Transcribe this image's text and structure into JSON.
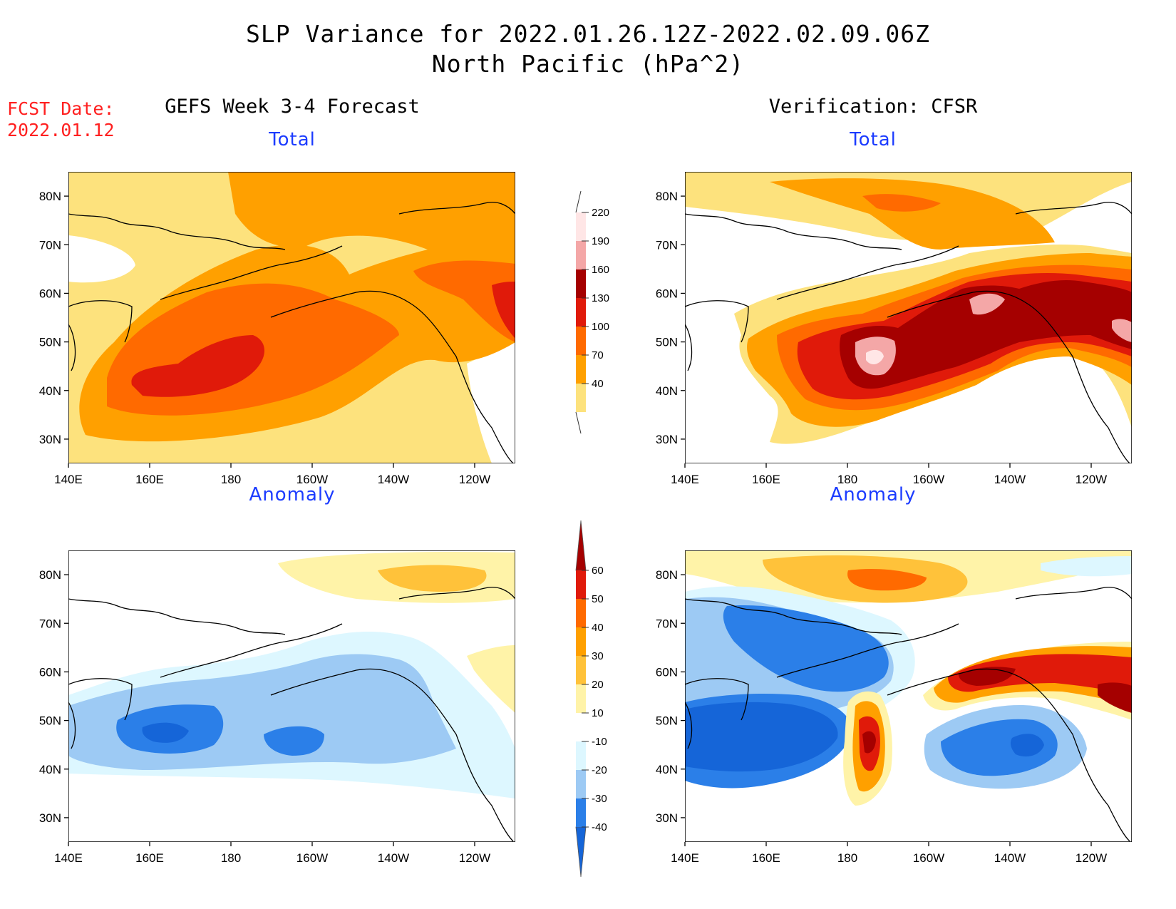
{
  "title": {
    "line1": "SLP Variance for 2022.01.26.12Z-2022.02.09.06Z",
    "line2": "North Pacific (hPa^2)"
  },
  "forecast_date": {
    "label": "FCST Date:",
    "value": "2022.01.12"
  },
  "columns": {
    "left": "GEFS Week 3-4 Forecast",
    "right": "Verification: CFSR"
  },
  "panels": {
    "forecast_total": "Total",
    "forecast_anomaly": "Anomaly",
    "verification_total": "Total",
    "verification_anomaly": "Anomaly"
  },
  "axes": {
    "x_ticks": [
      "140E",
      "160E",
      "180",
      "160W",
      "140W",
      "120W"
    ],
    "y_ticks": [
      "80N",
      "70N",
      "60N",
      "50N",
      "40N",
      "30N"
    ],
    "x_range_lon": [
      140,
      250
    ],
    "y_range_lat": [
      25,
      85
    ]
  },
  "colorbars": {
    "total": {
      "levels": [
        40,
        70,
        100,
        130,
        160,
        190,
        220
      ],
      "colors": [
        "#fde27d",
        "#ffa000",
        "#ff6a00",
        "#e01a0a",
        "#a50000",
        "#f4a7a7",
        "#ffe6e6"
      ]
    },
    "anomaly": {
      "levels": [
        -40,
        -30,
        -20,
        -10,
        10,
        20,
        30,
        40,
        50,
        60
      ],
      "colors": [
        "#1565d8",
        "#2b7fe8",
        "#9dcaf4",
        "#ddf7ff",
        "#ffffff",
        "#fff3a8",
        "#ffc23a",
        "#ffa000",
        "#ff6a00",
        "#e01a0a",
        "#a50000"
      ]
    }
  },
  "fill_colors": {
    "t40": "#fde27d",
    "t70": "#ffa000",
    "t100": "#ff6a00",
    "t130": "#e01a0a",
    "t160": "#a50000",
    "t190": "#f4a7a7",
    "t220": "#ffe6e6",
    "a_m10": "#ddf7ff",
    "a_m20": "#9dcaf4",
    "a_m30": "#2b7fe8",
    "a_m40": "#1565d8",
    "a_p10": "#fff3a8",
    "a_p20": "#ffc23a",
    "a_p30": "#ffa000",
    "a_p40": "#ff6a00",
    "a_p50": "#e01a0a",
    "a_p60": "#a50000"
  }
}
